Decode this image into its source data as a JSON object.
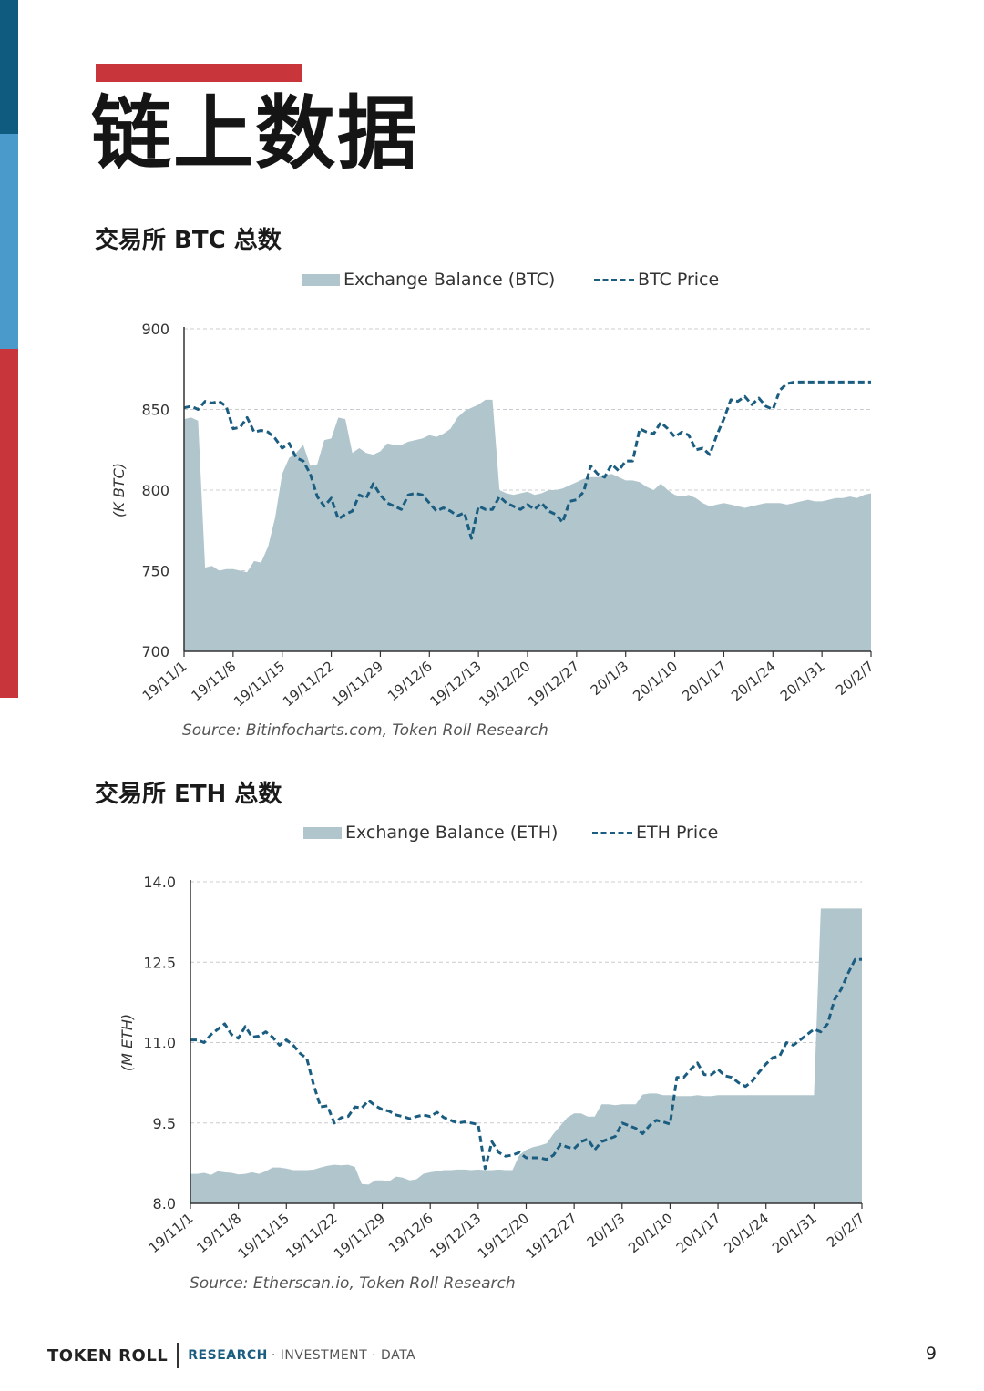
{
  "page": {
    "title": "链上数据",
    "page_number": "9"
  },
  "footer": {
    "brand": "TOKEN ROLL",
    "tag_research": "RESEARCH",
    "tag_rest": "· INVESTMENT · DATA"
  },
  "colors": {
    "accent_red": "#c8363b",
    "band_dark_blue": "#0f5a7f",
    "band_light_blue": "#4a9bcc",
    "balance_fill": "#b0c5cc",
    "price_line": "#1b5d80"
  },
  "chart_data": [
    {
      "type": "area",
      "title": "交易所 BTC 总数",
      "source": "Source: Bitinfocharts.com, Token Roll Research",
      "ylabel": "(K BTC)",
      "xlabel": "",
      "ylim": [
        700,
        900
      ],
      "yticks": [
        700,
        750,
        800,
        850,
        900
      ],
      "grid": true,
      "legend_position": "top",
      "x_ticks": [
        "19/11/1",
        "19/11/8",
        "19/11/15",
        "19/11/22",
        "19/11/29",
        "19/12/6",
        "19/12/13",
        "19/12/20",
        "19/12/27",
        "20/1/3",
        "20/1/10",
        "20/1/17",
        "20/1/24",
        "20/1/31",
        "20/2/7"
      ],
      "series": [
        {
          "name": "Exchange Balance (BTC)",
          "style": "area",
          "x": [
            0,
            1,
            2,
            3,
            4,
            5,
            6,
            7,
            8,
            9,
            10,
            11,
            12,
            13,
            14,
            15,
            16,
            17,
            18,
            19,
            20,
            21,
            22,
            23,
            24,
            25,
            26,
            27,
            28,
            29,
            30,
            31,
            32,
            33,
            34,
            35,
            36,
            37,
            38,
            39,
            40,
            41,
            42,
            43,
            44,
            45,
            46,
            47,
            48,
            49,
            50,
            51,
            52,
            53,
            54,
            55,
            56,
            57,
            58,
            59,
            60,
            61,
            62,
            63,
            64,
            65,
            66,
            67,
            68,
            69,
            70,
            71,
            72,
            73,
            74,
            75,
            76,
            77,
            78,
            79,
            80,
            81,
            82,
            83,
            84,
            85,
            86,
            87,
            88,
            89,
            90,
            91,
            92,
            93,
            94,
            95,
            96,
            97,
            98
          ],
          "values": [
            844,
            845,
            843,
            752,
            753,
            750,
            751,
            751,
            750,
            749,
            756,
            755,
            765,
            783,
            810,
            820,
            823,
            828,
            815,
            816,
            831,
            832,
            845,
            844,
            823,
            826,
            823,
            822,
            824,
            829,
            828,
            828,
            830,
            831,
            832,
            834,
            833,
            835,
            838,
            845,
            849,
            851,
            853,
            856,
            856,
            800,
            798,
            797,
            798,
            799,
            797,
            798,
            800,
            800,
            801,
            803,
            805,
            807,
            808,
            808,
            809,
            810,
            808,
            806,
            806,
            805,
            802,
            800,
            804,
            800,
            797,
            796,
            797,
            795,
            792,
            790,
            791,
            792,
            791,
            790,
            789,
            790,
            791,
            792,
            792,
            792,
            791,
            792,
            793,
            794,
            793,
            793,
            794,
            795,
            795,
            796,
            795,
            797,
            798
          ]
        },
        {
          "name": "BTC Price",
          "style": "dashed-line",
          "x": [
            0,
            1,
            2,
            3,
            4,
            5,
            6,
            7,
            8,
            9,
            10,
            11,
            12,
            13,
            14,
            15,
            16,
            17,
            18,
            19,
            20,
            21,
            22,
            23,
            24,
            25,
            26,
            27,
            28,
            29,
            30,
            31,
            32,
            33,
            34,
            35,
            36,
            37,
            38,
            39,
            40,
            41,
            42,
            43,
            44,
            45,
            46,
            47,
            48,
            49,
            50,
            51,
            52,
            53,
            54,
            55,
            56,
            57,
            58,
            59,
            60,
            61,
            62,
            63,
            64,
            65,
            66,
            67,
            68,
            69,
            70,
            71,
            72,
            73,
            74,
            75,
            76,
            77,
            78,
            79,
            80,
            81,
            82,
            83,
            84,
            85,
            86,
            87,
            88,
            89,
            90,
            91,
            92,
            93,
            94,
            95,
            96,
            97,
            98
          ],
          "values": [
            851,
            852,
            850,
            855,
            854,
            855,
            852,
            838,
            839,
            845,
            836,
            837,
            836,
            832,
            826,
            829,
            820,
            818,
            810,
            796,
            790,
            795,
            782,
            785,
            787,
            797,
            795,
            804,
            797,
            792,
            790,
            788,
            797,
            798,
            797,
            792,
            787,
            789,
            787,
            784,
            786,
            770,
            790,
            788,
            788,
            796,
            792,
            790,
            788,
            791,
            788,
            792,
            787,
            785,
            780,
            793,
            794,
            799,
            815,
            810,
            808,
            816,
            812,
            818,
            818,
            838,
            836,
            835,
            842,
            838,
            833,
            836,
            834,
            825,
            826,
            822,
            834,
            844,
            856,
            855,
            858,
            853,
            857,
            852,
            850,
            862,
            866,
            867,
            867,
            867,
            867,
            867,
            867,
            867,
            867,
            867,
            867,
            867,
            867
          ]
        }
      ]
    },
    {
      "type": "area",
      "title": "交易所 ETH 总数",
      "source": "Source: Etherscan.io, Token Roll Research",
      "ylabel": "(M ETH)",
      "xlabel": "",
      "ylim": [
        8.0,
        14.0
      ],
      "yticks": [
        "8.0",
        "9.5",
        "11.0",
        "12.5",
        "14.0"
      ],
      "grid": true,
      "legend_position": "top",
      "x_ticks": [
        "19/11/1",
        "19/11/8",
        "19/11/15",
        "19/11/22",
        "19/11/29",
        "19/12/6",
        "19/12/13",
        "19/12/20",
        "19/12/27",
        "20/1/3",
        "20/1/10",
        "20/1/17",
        "20/1/24",
        "20/1/31",
        "20/2/7"
      ],
      "series": [
        {
          "name": "Exchange Balance (ETH)",
          "style": "area",
          "x": [
            0,
            1,
            2,
            3,
            4,
            5,
            6,
            7,
            8,
            9,
            10,
            11,
            12,
            13,
            14,
            15,
            16,
            17,
            18,
            19,
            20,
            21,
            22,
            23,
            24,
            25,
            26,
            27,
            28,
            29,
            30,
            31,
            32,
            33,
            34,
            35,
            36,
            37,
            38,
            39,
            40,
            41,
            42,
            43,
            44,
            45,
            46,
            47,
            48,
            49,
            50,
            51,
            52,
            53,
            54,
            55,
            56,
            57,
            58,
            59,
            60,
            61,
            62,
            63,
            64,
            65,
            66,
            67,
            68,
            69,
            70,
            71,
            72,
            73,
            74,
            75,
            76,
            77,
            78,
            79,
            80,
            81,
            82,
            83,
            84,
            85,
            86,
            87,
            88,
            89,
            90,
            91,
            92,
            93,
            94,
            95,
            96,
            97,
            98
          ],
          "values": [
            8.55,
            8.55,
            8.57,
            8.53,
            8.6,
            8.58,
            8.57,
            8.54,
            8.55,
            8.58,
            8.55,
            8.6,
            8.67,
            8.67,
            8.65,
            8.62,
            8.62,
            8.62,
            8.63,
            8.67,
            8.7,
            8.72,
            8.71,
            8.72,
            8.68,
            8.36,
            8.35,
            8.43,
            8.43,
            8.41,
            8.5,
            8.48,
            8.43,
            8.45,
            8.55,
            8.58,
            8.6,
            8.62,
            8.62,
            8.63,
            8.63,
            8.62,
            8.63,
            8.62,
            8.62,
            8.63,
            8.62,
            8.62,
            8.9,
            9.0,
            9.05,
            9.08,
            9.12,
            9.3,
            9.45,
            9.6,
            9.68,
            9.68,
            9.62,
            9.62,
            9.85,
            9.85,
            9.83,
            9.85,
            9.85,
            9.85,
            10.03,
            10.05,
            10.05,
            10.02,
            10.02,
            10.0,
            10.0,
            10.0,
            10.02,
            10.0,
            10.0,
            10.02,
            10.02,
            10.02,
            10.02,
            10.02,
            10.02,
            10.02,
            10.02,
            10.02,
            10.02,
            10.02,
            10.02,
            10.02,
            10.02,
            10.02,
            13.5,
            13.5,
            13.5,
            13.5,
            13.5,
            13.5,
            13.5
          ]
        },
        {
          "name": "ETH Price",
          "style": "dashed-line",
          "x": [
            0,
            1,
            2,
            3,
            4,
            5,
            6,
            7,
            8,
            9,
            10,
            11,
            12,
            13,
            14,
            15,
            16,
            17,
            18,
            19,
            20,
            21,
            22,
            23,
            24,
            25,
            26,
            27,
            28,
            29,
            30,
            31,
            32,
            33,
            34,
            35,
            36,
            37,
            38,
            39,
            40,
            41,
            42,
            43,
            44,
            45,
            46,
            47,
            48,
            49,
            50,
            51,
            52,
            53,
            54,
            55,
            56,
            57,
            58,
            59,
            60,
            61,
            62,
            63,
            64,
            65,
            66,
            67,
            68,
            69,
            70,
            71,
            72,
            73,
            74,
            75,
            76,
            77,
            78,
            79,
            80,
            81,
            82,
            83,
            84,
            85,
            86,
            87,
            88,
            89,
            90,
            91,
            92,
            93,
            94,
            95,
            96,
            97,
            98
          ],
          "values": [
            11.05,
            11.05,
            11.0,
            11.15,
            11.25,
            11.35,
            11.15,
            11.08,
            11.3,
            11.1,
            11.12,
            11.2,
            11.1,
            10.95,
            11.05,
            10.95,
            10.8,
            10.7,
            10.2,
            9.8,
            9.82,
            9.5,
            9.6,
            9.62,
            9.8,
            9.78,
            9.92,
            9.82,
            9.75,
            9.72,
            9.65,
            9.62,
            9.58,
            9.62,
            9.65,
            9.62,
            9.7,
            9.6,
            9.55,
            9.5,
            9.52,
            9.5,
            9.47,
            8.65,
            9.15,
            8.95,
            8.88,
            8.9,
            8.95,
            8.85,
            8.85,
            8.85,
            8.82,
            8.9,
            9.1,
            9.05,
            9.02,
            9.15,
            9.2,
            9.0,
            9.15,
            9.2,
            9.25,
            9.5,
            9.45,
            9.4,
            9.3,
            9.45,
            9.55,
            9.52,
            9.48,
            10.35,
            10.35,
            10.5,
            10.62,
            10.4,
            10.4,
            10.5,
            10.38,
            10.35,
            10.25,
            10.18,
            10.28,
            10.45,
            10.6,
            10.72,
            10.75,
            11.0,
            10.95,
            11.05,
            11.15,
            11.25,
            11.2,
            11.35,
            11.8,
            12.0,
            12.3,
            12.55,
            12.55
          ]
        }
      ]
    }
  ]
}
